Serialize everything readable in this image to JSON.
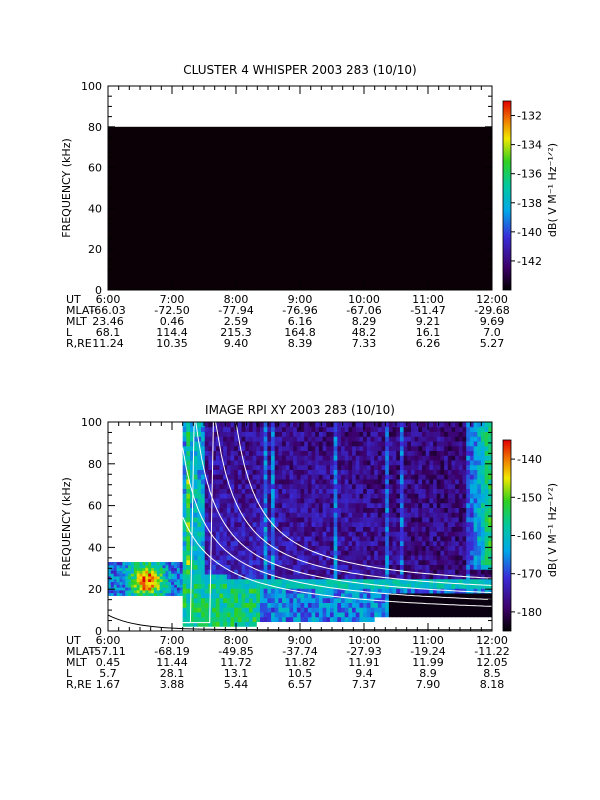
{
  "chart_data": [
    {
      "type": "heatmap",
      "title": "CLUSTER 4 WHISPER 2003 283 (10/10)",
      "ylabel": "FREQUENCY (kHz)",
      "ylim": [
        0,
        100
      ],
      "yticks": [
        "0",
        "20",
        "40",
        "60",
        "80",
        "100"
      ],
      "x_ticks": [
        "6:00",
        "7:00",
        "8:00",
        "9:00",
        "10:00",
        "11:00",
        "12:00"
      ],
      "data_extent": {
        "x": [
          "6:00",
          "12:00"
        ],
        "y": [
          0,
          80
        ],
        "fill": "#0a0005"
      },
      "colorbar": {
        "label": "dB( V M⁻¹ Hz⁻¹ᐟ²)",
        "ticks": [
          "-132",
          "-134",
          "-136",
          "-138",
          "-140",
          "-142"
        ],
        "range": [
          -144,
          -131
        ]
      },
      "orbit": {
        "rows": [
          "UT",
          "MLAT",
          "MLT",
          "L",
          "R,RE"
        ],
        "values": [
          [
            "6:00",
            "7:00",
            "8:00",
            "9:00",
            "10:00",
            "11:00",
            "12:00"
          ],
          [
            "-66.03",
            "-72.50",
            "-77.94",
            "-76.96",
            "-67.06",
            "-51.47",
            "-29.68"
          ],
          [
            "23.46",
            "0.46",
            "2.59",
            "6.16",
            "8.29",
            "9.21",
            "9.69"
          ],
          [
            "68.1",
            "114.4",
            "215.3",
            "164.8",
            "48.2",
            "16.1",
            "7.0"
          ],
          [
            "11.24",
            "10.35",
            "9.40",
            "8.39",
            "7.33",
            "6.26",
            "5.27"
          ]
        ]
      }
    },
    {
      "type": "heatmap",
      "title": "IMAGE RPI XY 2003 283 (10/10)",
      "ylabel": "FREQUENCY (kHz)",
      "ylim": [
        0,
        100
      ],
      "yticks": [
        "0",
        "20",
        "40",
        "60",
        "80",
        "100"
      ],
      "x_ticks": [
        "6:00",
        "7:00",
        "8:00",
        "9:00",
        "10:00",
        "11:00",
        "12:00"
      ],
      "colorbar": {
        "label": "dB( V M⁻¹ Hz⁻¹ᐟ²)",
        "ticks": [
          "-140",
          "-150",
          "-160",
          "-170",
          "-180"
        ],
        "range": [
          -185,
          -135
        ]
      },
      "features": {
        "early_band": {
          "t_start": "6:00",
          "t_end": "7:10",
          "f_min": 17,
          "f_max": 33
        },
        "main_start": "7:10",
        "plasma_line_kHz": 22,
        "gap_after": "10:20",
        "overlay_curves": 5,
        "bottom_curve_f0_kHz": 7
      },
      "orbit": {
        "rows": [
          "UT",
          "MLAT",
          "MLT",
          "L",
          "R,RE"
        ],
        "values": [
          [
            "6:00",
            "7:00",
            "8:00",
            "9:00",
            "10:00",
            "11:00",
            "12:00"
          ],
          [
            "-57.11",
            "-68.19",
            "-49.85",
            "-37.74",
            "-27.93",
            "-19.24",
            "-11.22"
          ],
          [
            "0.45",
            "11.44",
            "11.72",
            "11.82",
            "11.91",
            "11.99",
            "12.05"
          ],
          [
            "5.7",
            "28.1",
            "13.1",
            "10.5",
            "9.4",
            "8.9",
            "8.5"
          ],
          [
            "1.67",
            "3.88",
            "5.44",
            "6.57",
            "7.37",
            "7.90",
            "8.18"
          ]
        ]
      }
    }
  ]
}
